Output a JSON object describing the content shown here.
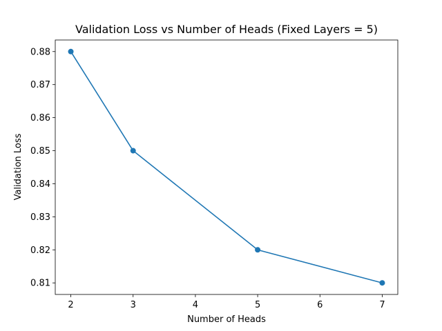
{
  "chart_data": {
    "type": "line",
    "title": "Validation Loss vs Number of Heads (Fixed Layers = 5)",
    "xlabel": "Number of Heads",
    "ylabel": "Validation Loss",
    "x": [
      2,
      3,
      5,
      7
    ],
    "series": [
      {
        "values": [
          0.88,
          0.85,
          0.82,
          0.81
        ],
        "color": "#1f77b4",
        "marker": "circle"
      }
    ],
    "xticks": [
      2,
      3,
      4,
      5,
      6,
      7
    ],
    "xtick_labels": [
      "2",
      "3",
      "4",
      "5",
      "6",
      "7"
    ],
    "yticks": [
      0.81,
      0.82,
      0.83,
      0.84,
      0.85,
      0.86,
      0.87,
      0.88
    ],
    "ytick_labels": [
      "0.81",
      "0.82",
      "0.83",
      "0.84",
      "0.85",
      "0.86",
      "0.87",
      "0.88"
    ],
    "xlim": [
      1.75,
      7.25
    ],
    "ylim": [
      0.8065,
      0.8835
    ],
    "grid": false,
    "legend": false
  }
}
